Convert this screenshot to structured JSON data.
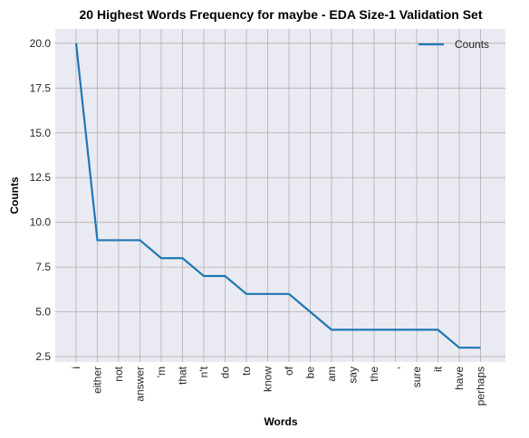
{
  "chart_data": {
    "type": "line",
    "title": "20 Highest Words Frequency for maybe - EDA Size-1 Validation Set",
    "xlabel": "Words",
    "ylabel": "Counts",
    "categories": [
      "i",
      "either",
      "not",
      "answer",
      "'m",
      "that",
      "n't",
      "do",
      "to",
      "know",
      "of",
      "be",
      "am",
      "say",
      "the",
      ",",
      "sure",
      "it",
      "have",
      "perhaps"
    ],
    "series": [
      {
        "name": "Counts",
        "values": [
          20,
          9,
          9,
          9,
          8,
          8,
          7,
          7,
          6,
          6,
          6,
          5,
          4,
          4,
          4,
          4,
          4,
          4,
          3,
          3
        ]
      }
    ],
    "ylim": [
      2.2,
      20.8
    ],
    "yticks": [
      2.5,
      5.0,
      7.5,
      10.0,
      12.5,
      15.0,
      17.5,
      20.0
    ],
    "grid": true,
    "legend": "top-right",
    "colors": {
      "line": "#1f77b4",
      "plot_bg": "#eaeaf2",
      "grid": "#b0b0b0"
    }
  }
}
